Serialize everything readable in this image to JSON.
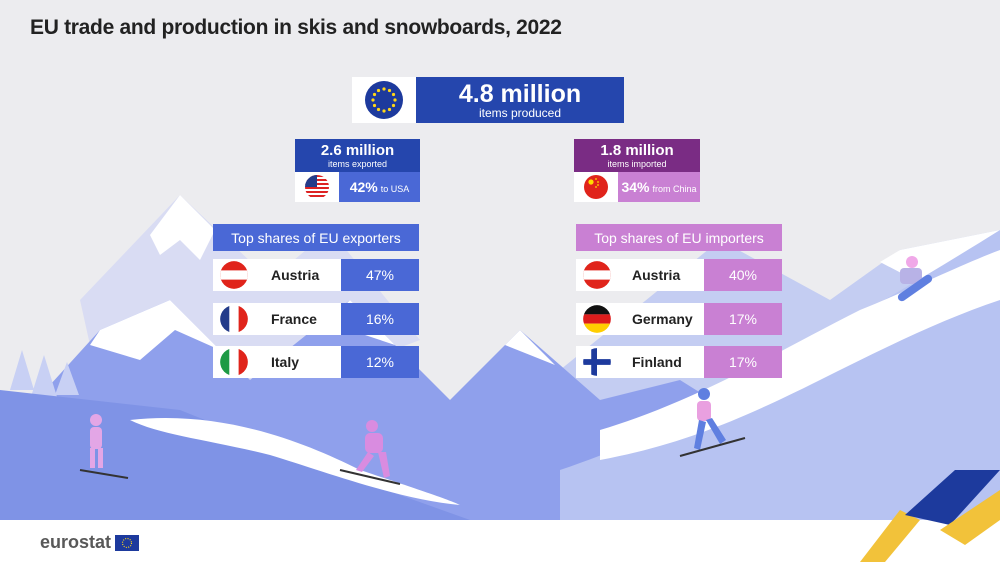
{
  "title": "EU trade and production in skis and snowboards, 2022",
  "colors": {
    "eu_blue": "#2546ad",
    "exporter_blue": "#4a68d6",
    "importer_purple": "#7a2c84",
    "importer_pink": "#c980d3",
    "sky": "#ececef"
  },
  "produced": {
    "value": "4.8 million",
    "label": "items produced",
    "icon": "eu-flag-icon"
  },
  "exported": {
    "value": "2.6 million",
    "label": "items exported",
    "share": "42%",
    "share_label": "to USA",
    "icon": "usa-flag-icon"
  },
  "imported": {
    "value": "1.8 million",
    "label": "items imported",
    "share": "34%",
    "share_label": "from China",
    "icon": "china-flag-icon"
  },
  "exporters": {
    "header": "Top shares of EU exporters",
    "rows": [
      {
        "country": "Austria",
        "share": "47%",
        "icon": "austria-flag-icon"
      },
      {
        "country": "France",
        "share": "16%",
        "icon": "france-flag-icon"
      },
      {
        "country": "Italy",
        "share": "12%",
        "icon": "italy-flag-icon"
      }
    ]
  },
  "importers": {
    "header": "Top shares of EU importers",
    "rows": [
      {
        "country": "Austria",
        "share": "40%",
        "icon": "austria-flag-icon"
      },
      {
        "country": "Germany",
        "share": "17%",
        "icon": "germany-flag-icon"
      },
      {
        "country": "Finland",
        "share": "17%",
        "icon": "finland-flag-icon"
      }
    ]
  },
  "logo": {
    "text": "eurostat",
    "icon": "eu-flag-icon"
  }
}
